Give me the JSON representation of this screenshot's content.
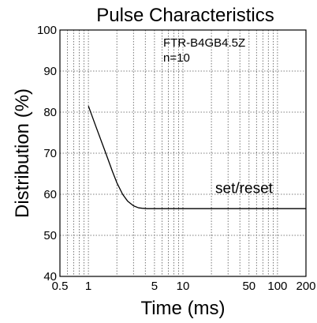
{
  "chart_data": {
    "type": "line",
    "title": "Pulse Characteristics",
    "xlabel": "Time (ms)",
    "ylabel": "Distribution (%)",
    "x_scale": "log",
    "xlim": [
      0.5,
      200
    ],
    "ylim": [
      40,
      100
    ],
    "x_ticks": [
      {
        "value": 0.5,
        "label": "0.5"
      },
      {
        "value": 1,
        "label": "1"
      },
      {
        "value": 5,
        "label": "5"
      },
      {
        "value": 10,
        "label": "10"
      },
      {
        "value": 50,
        "label": "50"
      },
      {
        "value": 100,
        "label": "100"
      },
      {
        "value": 200,
        "label": "200"
      }
    ],
    "x_minor_grid": [
      0.6,
      0.7,
      0.8,
      0.9,
      2,
      3,
      4,
      6,
      7,
      8,
      9,
      20,
      30,
      40,
      60,
      70,
      80,
      90
    ],
    "y_ticks": [
      40,
      50,
      60,
      70,
      80,
      90,
      100
    ],
    "grid": true,
    "annotations": [
      "FTR-B4GB4.5Z",
      "n=10"
    ],
    "series": [
      {
        "name": "set/reset",
        "x": [
          1.0,
          1.2,
          1.5,
          1.8,
          2.0,
          2.3,
          2.6,
          3.0,
          3.4,
          3.7,
          4.2,
          5,
          7,
          10,
          20,
          50,
          100,
          200
        ],
        "y": [
          81.5,
          76.5,
          70.5,
          65.5,
          62.8,
          60.0,
          58.3,
          57.2,
          56.7,
          56.6,
          56.5,
          56.5,
          56.5,
          56.5,
          56.5,
          56.5,
          56.5,
          56.5
        ]
      }
    ]
  }
}
